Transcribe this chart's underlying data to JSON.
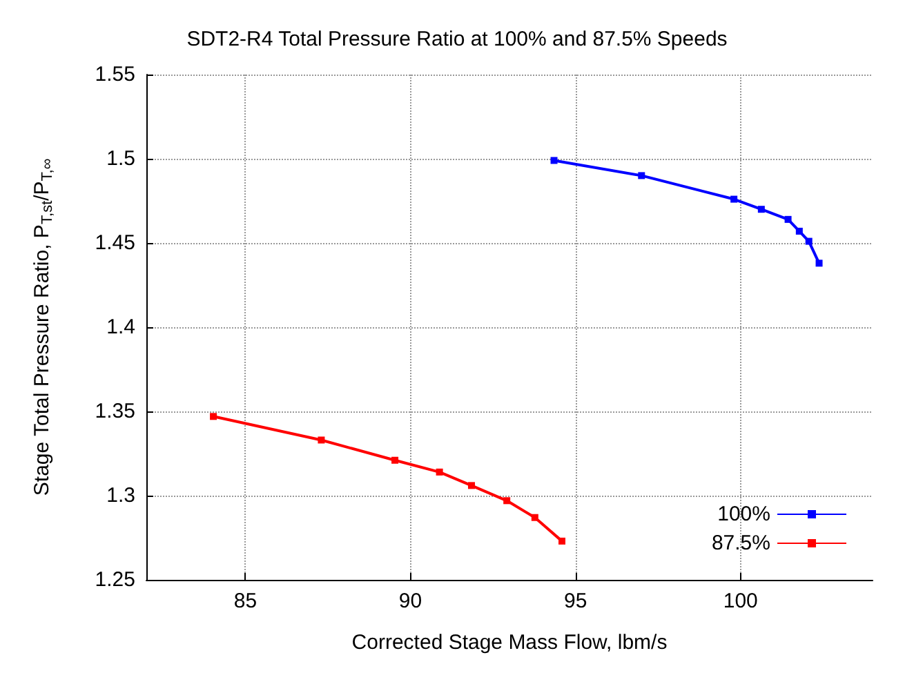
{
  "chart_data": {
    "type": "line",
    "title": "SDT2-R4 Total Pressure Ratio at 100% and 87.5% Speeds",
    "xlabel": "Corrected Stage Mass Flow, lbm/s",
    "ylabel": "Stage Total Pressure Ratio, P$_{T,st}$/P$_{T,∞}$",
    "xlim": [
      82,
      104
    ],
    "xticks": [
      85,
      90,
      95,
      100
    ],
    "ylim": [
      1.25,
      1.55
    ],
    "yticks": [
      1.25,
      1.3,
      1.35,
      1.4,
      1.45,
      1.5,
      1.55
    ],
    "grid": true,
    "legend": "bottom right",
    "marker": "square",
    "line_style": "solid",
    "series": [
      {
        "name": "100%",
        "color": "#0000ff",
        "x": [
          94.35,
          97.0,
          99.8,
          100.63,
          101.44,
          101.78,
          102.07,
          102.38
        ],
        "values": [
          1.499,
          1.49,
          1.476,
          1.47,
          1.464,
          1.457,
          1.451,
          1.438
        ]
      },
      {
        "name": "87.5%",
        "color": "#ff0000",
        "x": [
          84.03,
          87.3,
          89.53,
          90.88,
          91.85,
          92.92,
          93.77,
          94.59
        ],
        "values": [
          1.347,
          1.333,
          1.321,
          1.314,
          1.306,
          1.297,
          1.287,
          1.273
        ]
      }
    ]
  }
}
